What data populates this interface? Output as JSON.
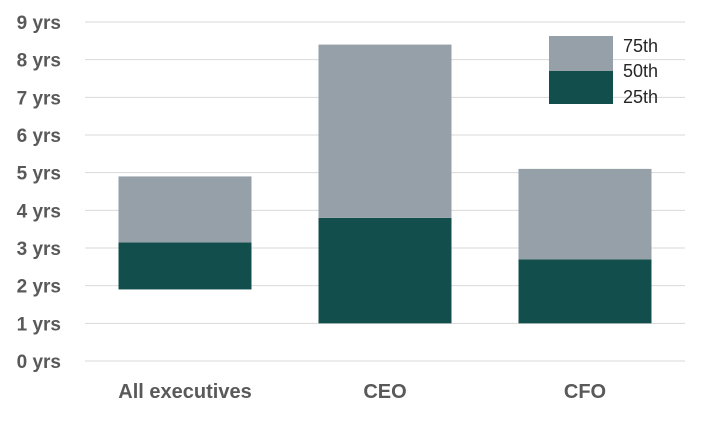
{
  "chart_data": {
    "type": "bar",
    "subtype": "stacked-floating-range",
    "categories": [
      "All executives",
      "CEO",
      "CFO"
    ],
    "y_tick_labels": [
      "0 yrs",
      "1 yrs",
      "2 yrs",
      "3 yrs",
      "4 yrs",
      "5 yrs",
      "6 yrs",
      "7 yrs",
      "8 yrs",
      "9 yrs"
    ],
    "ylim": [
      0,
      9
    ],
    "ytick_step": 1,
    "grid": true,
    "legend_position": "top-right",
    "percentiles": {
      "p25": [
        1.9,
        1.0,
        1.0
      ],
      "p50": [
        3.15,
        3.8,
        2.7
      ],
      "p75": [
        4.9,
        8.4,
        5.1
      ]
    },
    "series": [
      {
        "name": "25th",
        "key": "p25",
        "color": "#ffffff"
      },
      {
        "name": "50th",
        "key": "p50",
        "color": "#124f4c"
      },
      {
        "name": "75th",
        "key": "p75",
        "color": "#96a0a8"
      }
    ],
    "colors": {
      "lower_segment": "#124f4c",
      "upper_segment": "#96a0a8",
      "grid": "#d9d9d9",
      "text": "#595959"
    }
  }
}
